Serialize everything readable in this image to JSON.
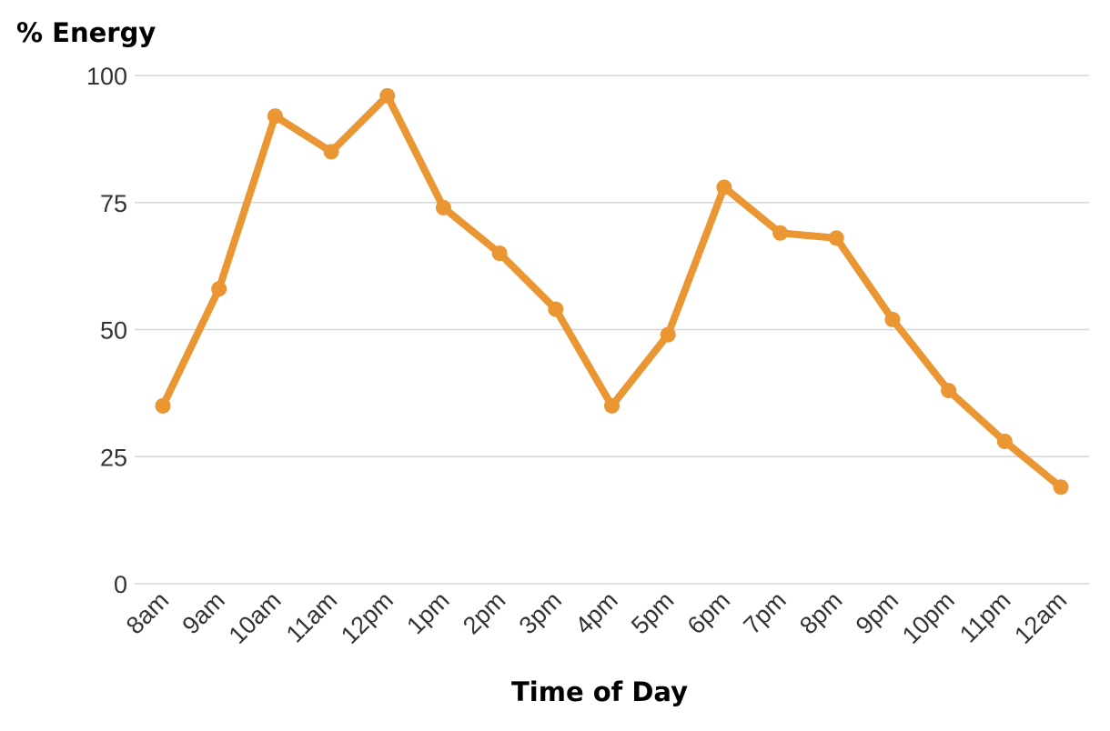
{
  "chart_data": {
    "type": "line",
    "title": "",
    "ylabel": "% Energy",
    "xlabel": "Time of Day",
    "categories": [
      "8am",
      "9am",
      "10am",
      "11am",
      "12pm",
      "1pm",
      "2pm",
      "3pm",
      "4pm",
      "5pm",
      "6pm",
      "7pm",
      "8pm",
      "9pm",
      "10pm",
      "11pm",
      "12am"
    ],
    "series": [
      {
        "values": [
          35,
          58,
          92,
          85,
          96,
          74,
          65,
          54,
          35,
          49,
          78,
          69,
          68,
          52,
          38,
          28,
          19
        ],
        "color": "#EA9633"
      }
    ],
    "ylim": [
      0,
      100
    ],
    "yticks": [
      0,
      25,
      50,
      75,
      100
    ],
    "grid": true,
    "legend": "none"
  }
}
